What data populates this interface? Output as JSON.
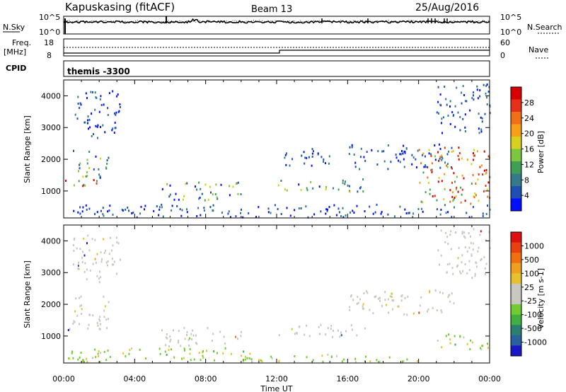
{
  "header": {
    "station": "Kapuskasing (fitACF)",
    "beam": "Beam 13",
    "date": "25/Aug/2016"
  },
  "top_panels": {
    "nsky_label": "N.Sky",
    "nsky_ticks": [
      "10^5",
      "10^0"
    ],
    "nsearch_label": "N.Search",
    "nsearch_ticks": [
      "10^5",
      "10^0"
    ],
    "freq_label_1": "Freq.",
    "freq_label_2": "[MHz]",
    "freq_ticks": [
      "18",
      "8"
    ],
    "nave_label": "Nave",
    "nave_ticks": [
      "60",
      "0"
    ],
    "cpid_label": "CPID",
    "cpid_text": "themis -3300"
  },
  "chart_data": [
    {
      "type": "heatmap",
      "name": "power",
      "ylabel": "Slant Range [km]",
      "yticks": [
        1000,
        2000,
        3000,
        4000
      ],
      "ylim": [
        150,
        4500
      ],
      "xlabel": "",
      "colorbar_label": "Power [dB]",
      "colorbar_ticks": [
        "4",
        "8",
        "12",
        "16",
        "20",
        "24",
        "28"
      ],
      "colorbar_colors": [
        "#0010ff",
        "#1e4fb5",
        "#347a8a",
        "#3fa055",
        "#7dc640",
        "#d8d020",
        "#f5a018",
        "#f07018",
        "#e83018",
        "#d80000"
      ],
      "scatter_regions": [
        {
          "t": [
            0,
            2.2
          ],
          "r": [
            1150,
            1450
          ],
          "level": "high"
        },
        {
          "t": [
            0.5,
            2.5
          ],
          "r": [
            1400,
            2300
          ],
          "level": "mid"
        },
        {
          "t": [
            0.5,
            3.2
          ],
          "r": [
            2700,
            4200
          ],
          "level": "low"
        },
        {
          "t": [
            5.5,
            10
          ],
          "r": [
            700,
            1300
          ],
          "level": "mid"
        },
        {
          "t": [
            0,
            24
          ],
          "r": [
            200,
            600
          ],
          "level": "low"
        },
        {
          "t": [
            12,
            17
          ],
          "r": [
            1000,
            1400
          ],
          "level": "mid"
        },
        {
          "t": [
            12,
            15
          ],
          "r": [
            1800,
            2400
          ],
          "level": "low"
        },
        {
          "t": [
            16,
            22
          ],
          "r": [
            1700,
            2500
          ],
          "level": "low"
        },
        {
          "t": [
            20,
            24
          ],
          "r": [
            600,
            2400
          ],
          "level": "high"
        },
        {
          "t": [
            21,
            24
          ],
          "r": [
            2800,
            4400
          ],
          "level": "low"
        }
      ]
    },
    {
      "type": "heatmap",
      "name": "velocity",
      "ylabel": "Slant Range [km]",
      "yticks": [
        1000,
        2000,
        3000,
        4000
      ],
      "ylim": [
        150,
        4500
      ],
      "xlabel": "Time UT",
      "xticks": [
        "00:00",
        "04:00",
        "08:00",
        "12:00",
        "16:00",
        "20:00",
        "00:00"
      ],
      "colorbar_label": "Velocity [m s-1]",
      "colorbar_ticks": [
        "1000",
        "500",
        "100",
        "25",
        "-25",
        "-100",
        "-500",
        "-1000"
      ],
      "colorbar_colors": [
        "#1818c8",
        "#2860a0",
        "#2a8070",
        "#40b040",
        "#70cc30",
        "#c8c8c0",
        "#c8c8c0",
        "#e8c030",
        "#f0a020",
        "#f07010",
        "#e84010",
        "#e01010"
      ],
      "scatter_regions": [
        {
          "t": [
            0,
            2.5
          ],
          "r": [
            1150,
            1450
          ],
          "level": "gray"
        },
        {
          "t": [
            0.5,
            2.5
          ],
          "r": [
            1400,
            2300
          ],
          "level": "gray"
        },
        {
          "t": [
            0.5,
            3.2
          ],
          "r": [
            2700,
            4200
          ],
          "level": "gray"
        },
        {
          "t": [
            5.5,
            10
          ],
          "r": [
            700,
            1300
          ],
          "level": "gray"
        },
        {
          "t": [
            0,
            11
          ],
          "r": [
            200,
            650
          ],
          "level": "green"
        },
        {
          "t": [
            10,
            20
          ],
          "r": [
            200,
            450
          ],
          "level": "green"
        },
        {
          "t": [
            12,
            17
          ],
          "r": [
            1000,
            1400
          ],
          "level": "gray"
        },
        {
          "t": [
            16,
            22
          ],
          "r": [
            1700,
            2500
          ],
          "level": "gray"
        },
        {
          "t": [
            21,
            24
          ],
          "r": [
            600,
            1100
          ],
          "level": "green"
        },
        {
          "t": [
            21,
            24
          ],
          "r": [
            2800,
            4400
          ],
          "level": "gray"
        }
      ]
    }
  ]
}
